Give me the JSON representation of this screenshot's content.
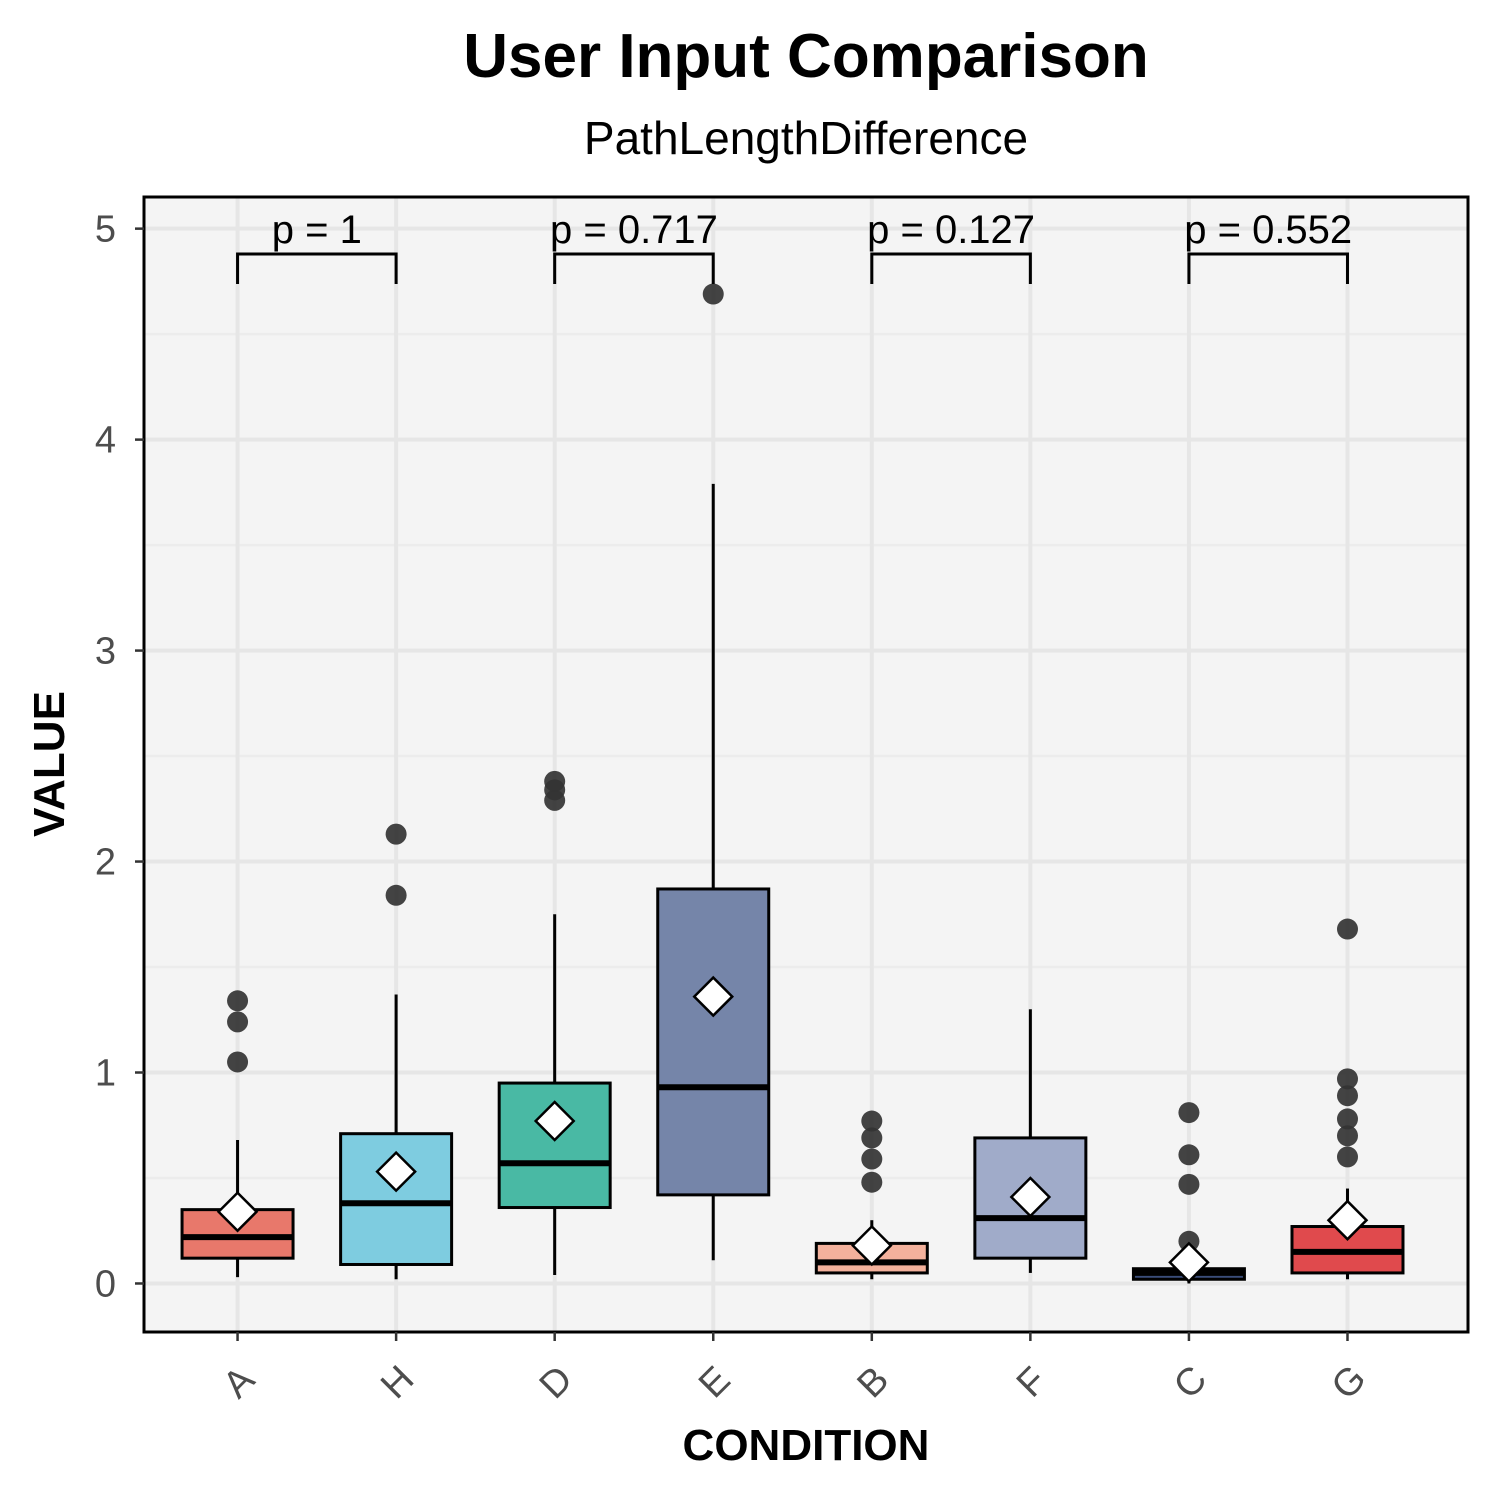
{
  "chart_data": {
    "type": "box",
    "title": "User Input Comparison",
    "subtitle": "PathLengthDifference",
    "xlabel": "CONDITION",
    "ylabel": "VALUE",
    "ylim": [
      -0.23,
      5.15
    ],
    "yticks": [
      0,
      1,
      2,
      3,
      4,
      5
    ],
    "ytick_labels": [
      "0",
      "1",
      "2",
      "3",
      "4",
      "5"
    ],
    "grid": true,
    "categories": [
      "A",
      "H",
      "D",
      "E",
      "B",
      "F",
      "C",
      "G"
    ],
    "colors": {
      "A": "#e8786b",
      "H": "#7ecce0",
      "D": "#49b9a4",
      "E": "#7585a9",
      "B": "#f3b19c",
      "F": "#a0abc9",
      "C": "#3a4d7a",
      "G": "#e04a4d"
    },
    "boxes": [
      {
        "category": "A",
        "whisker_low": 0.03,
        "q1": 0.12,
        "median": 0.22,
        "q3": 0.35,
        "whisker_high": 0.68,
        "mean": 0.34,
        "outliers": [
          1.05,
          1.24,
          1.34
        ]
      },
      {
        "category": "H",
        "whisker_low": 0.02,
        "q1": 0.09,
        "median": 0.38,
        "q3": 0.71,
        "whisker_high": 1.37,
        "mean": 0.53,
        "outliers": [
          1.84,
          2.13
        ]
      },
      {
        "category": "D",
        "whisker_low": 0.04,
        "q1": 0.36,
        "median": 0.57,
        "q3": 0.95,
        "whisker_high": 1.75,
        "mean": 0.77,
        "outliers": [
          2.29,
          2.34,
          2.38
        ]
      },
      {
        "category": "E",
        "whisker_low": 0.11,
        "q1": 0.42,
        "median": 0.93,
        "q3": 1.87,
        "whisker_high": 3.79,
        "mean": 1.36,
        "outliers": [
          4.69
        ]
      },
      {
        "category": "B",
        "whisker_low": 0.02,
        "q1": 0.05,
        "median": 0.1,
        "q3": 0.19,
        "whisker_high": 0.3,
        "mean": 0.18,
        "outliers": [
          0.48,
          0.59,
          0.69,
          0.77
        ]
      },
      {
        "category": "F",
        "whisker_low": 0.05,
        "q1": 0.12,
        "median": 0.31,
        "q3": 0.69,
        "whisker_high": 1.3,
        "mean": 0.41,
        "outliers": []
      },
      {
        "category": "C",
        "whisker_low": 0.0,
        "q1": 0.02,
        "median": 0.05,
        "q3": 0.07,
        "whisker_high": 0.07,
        "mean": 0.1,
        "outliers": [
          0.2,
          0.47,
          0.61,
          0.81
        ]
      },
      {
        "category": "G",
        "whisker_low": 0.02,
        "q1": 0.05,
        "median": 0.15,
        "q3": 0.27,
        "whisker_high": 0.45,
        "mean": 0.3,
        "outliers": [
          0.6,
          0.7,
          0.78,
          0.89,
          0.97,
          1.68
        ]
      }
    ],
    "comparisons": [
      {
        "groups": [
          "A",
          "H"
        ],
        "label": "p = 1",
        "y": 4.88
      },
      {
        "groups": [
          "D",
          "E"
        ],
        "label": "p = 0.717",
        "y": 4.88
      },
      {
        "groups": [
          "B",
          "F"
        ],
        "label": "p = 0.127",
        "y": 4.88
      },
      {
        "groups": [
          "C",
          "G"
        ],
        "label": "p = 0.552",
        "y": 4.88
      }
    ]
  }
}
